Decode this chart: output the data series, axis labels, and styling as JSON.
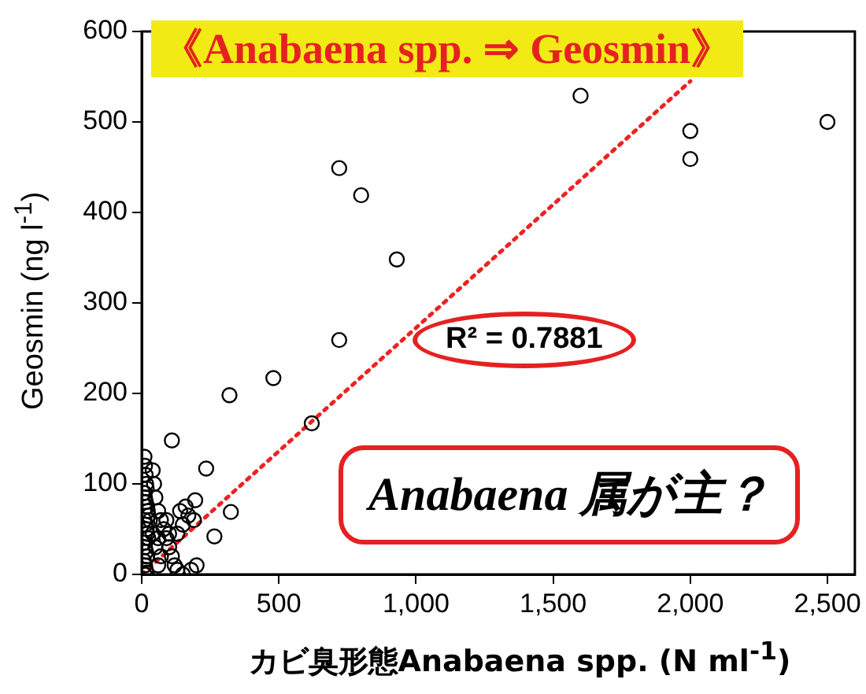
{
  "chart_data": {
    "type": "scatter",
    "title": "《Anabaena spp. ⇒ Geosmin》",
    "xlabel": "カビ臭形態Anabaena spp. (N ml$^{-1}$)",
    "ylabel": "Geosmin (ng l$^{-1}$)",
    "annotations": [
      "R² = 0.7881",
      "Anabaena 属が主？"
    ],
    "xlim": [
      0,
      2600
    ],
    "xticks": [
      0,
      500,
      {
        "value": 1000,
        "label": "1,000"
      },
      {
        "value": 1500,
        "label": "1,500"
      },
      {
        "value": 2000,
        "label": "2,000"
      },
      {
        "value": 2500,
        "label": "2,500"
      }
    ],
    "ylim": [
      0,
      600
    ],
    "yticks": [
      0,
      100,
      200,
      300,
      400,
      500,
      600
    ],
    "grid": false,
    "legend": false,
    "marker": "circle",
    "series": [
      {
        "color": "#000000",
        "x": [
          1600,
          2000,
          2000,
          2500,
          720,
          800,
          930,
          720,
          480,
          320,
          620,
          110,
          235,
          325,
          265,
          195,
          10,
          12,
          14,
          16,
          18,
          10,
          12,
          15,
          20,
          22,
          25,
          10,
          14,
          18,
          20,
          24,
          10,
          12,
          16,
          20,
          8,
          12,
          15,
          18,
          10,
          40,
          45,
          50,
          60,
          70,
          80,
          90,
          100,
          110,
          120,
          130,
          150,
          180,
          70,
          60,
          50,
          40,
          30,
          150,
          170,
          160,
          190,
          140,
          100,
          90,
          130,
          200,
          60
        ],
        "values": [
          529,
          490,
          459,
          500,
          449,
          419,
          348,
          259,
          217,
          198,
          167,
          148,
          117,
          69,
          42,
          82,
          130,
          120,
          110,
          100,
          95,
          90,
          85,
          80,
          75,
          70,
          65,
          60,
          55,
          50,
          45,
          40,
          35,
          30,
          25,
          20,
          15,
          10,
          5,
          2,
          0,
          115,
          100,
          85,
          70,
          60,
          50,
          40,
          30,
          20,
          10,
          5,
          0,
          5,
          20,
          10,
          30,
          45,
          60,
          55,
          65,
          75,
          60,
          70,
          45,
          60,
          45,
          10,
          40
        ]
      },
      {
        "type": "line",
        "color": "#ee2222",
        "line_style": "dotted",
        "marker": "none",
        "x": [
          0,
          2000
        ],
        "values": [
          0,
          545
        ]
      }
    ]
  }
}
